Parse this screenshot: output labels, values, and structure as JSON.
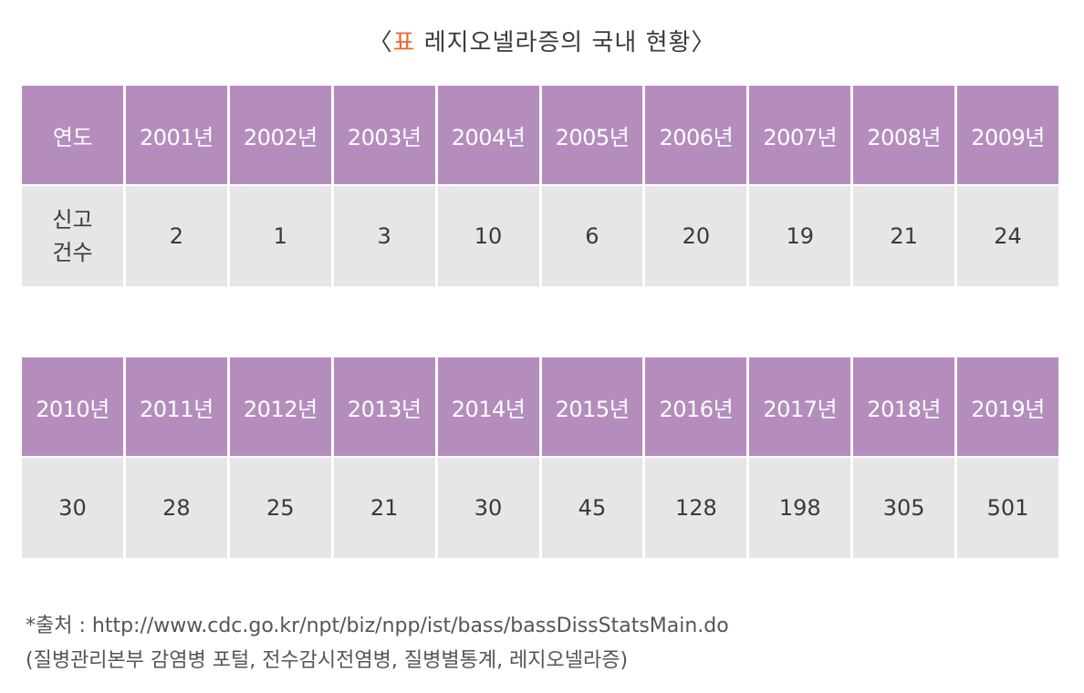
{
  "title": {
    "open": "〈",
    "label": "표",
    "text": " 레지오넬라증의 국내 현황〉"
  },
  "colors": {
    "header_bg": "#b48dbd",
    "value_bg": "#e6e6e6",
    "accent": "#e8692a"
  },
  "table1": {
    "row_header": "연도",
    "value_header_line1": "신고",
    "value_header_line2": "건수",
    "years": [
      "2001년",
      "2002년",
      "2003년",
      "2004년",
      "2005년",
      "2006년",
      "2007년",
      "2008년",
      "2009년"
    ],
    "counts": [
      "2",
      "1",
      "3",
      "10",
      "6",
      "20",
      "19",
      "21",
      "24"
    ]
  },
  "table2": {
    "years": [
      "2010년",
      "2011년",
      "2012년",
      "2013년",
      "2014년",
      "2015년",
      "2016년",
      "2017년",
      "2018년",
      "2019년"
    ],
    "counts": [
      "30",
      "28",
      "25",
      "21",
      "30",
      "45",
      "128",
      "198",
      "305",
      "501"
    ]
  },
  "source": {
    "line1": "*출처 : http://www.cdc.go.kr/npt/biz/npp/ist/bass/bassDissStatsMain.do",
    "line2": "(질병관리본부 감염병 포털, 전수감시전염병, 질병별통계, 레지오넬라증)"
  }
}
